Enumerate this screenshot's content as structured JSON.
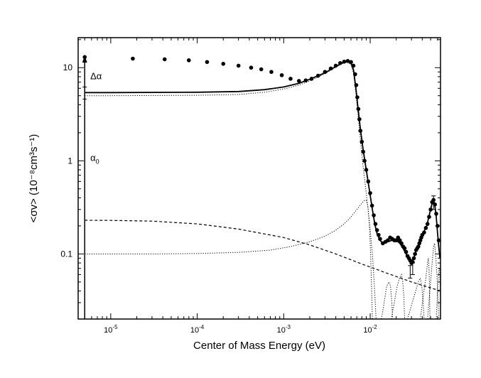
{
  "chart_data": {
    "type": "scatter",
    "xscale": "log",
    "yscale": "log",
    "xlim": [
      4.2e-06,
      0.065
    ],
    "ylim": [
      0.02,
      21
    ],
    "grid": false,
    "legend": "none",
    "xlabel": "Center of Mass Energy (eV)",
    "ylabel": "<σv> (10⁻⁸cm³s⁻¹)",
    "x_ticks": [
      {
        "value": 1e-05,
        "base": "10",
        "exp": "-5"
      },
      {
        "value": 0.0001,
        "base": "10",
        "exp": "-4"
      },
      {
        "value": 0.001,
        "base": "10",
        "exp": "-3"
      },
      {
        "value": 0.01,
        "base": "10",
        "exp": "-2"
      }
    ],
    "y_ticks": [
      {
        "value": 0.1,
        "label": "0.1"
      },
      {
        "value": 1,
        "label": "1"
      },
      {
        "value": 10,
        "label": "10"
      }
    ],
    "annotations": [
      {
        "text": "Δα",
        "x": 5.8e-06,
        "y": 7.5
      },
      {
        "text": "α",
        "sub": "0",
        "x": 5.8e-06,
        "y": 1.0
      }
    ],
    "arrow": {
      "x": 5e-06,
      "y_from": 0.02,
      "y_to": 13.5
    },
    "data_points": [
      [
        5e-06,
        13.0
      ],
      [
        1.8e-05,
        12.5
      ],
      [
        4.2e-05,
        12.3
      ],
      [
        8e-05,
        12.0
      ],
      [
        0.00013,
        11.5
      ],
      [
        0.0002,
        11.0
      ],
      [
        0.0003,
        10.5
      ],
      [
        0.00042,
        10.0
      ],
      [
        0.00055,
        9.6
      ],
      [
        0.00072,
        9.0
      ],
      [
        0.00095,
        8.3
      ],
      [
        0.0012,
        7.6
      ],
      [
        0.0015,
        7.2
      ],
      [
        0.0018,
        7.3
      ],
      [
        0.0021,
        7.6
      ],
      [
        0.0025,
        8.2
      ],
      [
        0.003,
        9.0
      ],
      [
        0.0035,
        9.8
      ],
      [
        0.004,
        10.5
      ],
      [
        0.0045,
        11.2
      ],
      [
        0.005,
        11.6
      ],
      [
        0.0055,
        11.8
      ],
      [
        0.006,
        11.5
      ],
      [
        0.0064,
        10.5
      ],
      [
        0.0067,
        8.5
      ],
      [
        0.0069,
        6.5
      ],
      [
        0.0071,
        4.8
      ],
      [
        0.0073,
        3.6
      ],
      [
        0.0075,
        2.8
      ],
      [
        0.0077,
        2.1
      ],
      [
        0.008,
        1.6
      ],
      [
        0.0083,
        1.25
      ],
      [
        0.0086,
        1.0
      ],
      [
        0.009,
        0.8
      ],
      [
        0.0095,
        0.6
      ],
      [
        0.01,
        0.45
      ],
      [
        0.0105,
        0.33
      ],
      [
        0.011,
        0.26
      ],
      [
        0.0115,
        0.21
      ],
      [
        0.012,
        0.18
      ],
      [
        0.0125,
        0.16
      ],
      [
        0.013,
        0.145
      ],
      [
        0.014,
        0.13
      ],
      [
        0.015,
        0.135
      ],
      [
        0.016,
        0.14
      ],
      [
        0.017,
        0.15
      ],
      [
        0.018,
        0.145
      ],
      [
        0.019,
        0.14
      ],
      [
        0.02,
        0.14
      ],
      [
        0.021,
        0.15
      ],
      [
        0.022,
        0.14
      ],
      [
        0.023,
        0.13
      ],
      [
        0.024,
        0.12
      ],
      [
        0.025,
        0.115
      ],
      [
        0.026,
        0.105
      ],
      [
        0.027,
        0.095
      ],
      [
        0.028,
        0.09
      ],
      [
        0.029,
        0.085
      ],
      [
        0.03,
        0.08
      ],
      [
        0.031,
        0.082
      ],
      [
        0.032,
        0.09
      ],
      [
        0.033,
        0.1
      ],
      [
        0.034,
        0.11
      ],
      [
        0.035,
        0.115
      ],
      [
        0.036,
        0.12
      ],
      [
        0.037,
        0.13
      ],
      [
        0.038,
        0.14
      ],
      [
        0.039,
        0.15
      ],
      [
        0.04,
        0.16
      ],
      [
        0.042,
        0.17
      ],
      [
        0.044,
        0.19
      ],
      [
        0.046,
        0.21
      ],
      [
        0.048,
        0.25
      ],
      [
        0.05,
        0.3
      ],
      [
        0.052,
        0.36
      ],
      [
        0.054,
        0.38
      ],
      [
        0.056,
        0.34
      ],
      [
        0.058,
        0.27
      ],
      [
        0.06,
        0.2
      ],
      [
        0.062,
        0.14
      ]
    ],
    "error_bars": [
      {
        "x": 5e-06,
        "y_low": 4.6,
        "y_high": 6.2
      },
      {
        "x": 0.029,
        "y_low": 0.055,
        "y_high": 0.075
      },
      {
        "x": 0.031,
        "y_low": 0.06,
        "y_high": 0.08
      },
      {
        "x": 0.054,
        "y_low": 0.3,
        "y_high": 0.42
      }
    ],
    "series": [
      {
        "style": "solid",
        "points": [
          [
            5e-06,
            5.4
          ],
          [
            1e-05,
            5.4
          ],
          [
            0.0001,
            5.45
          ],
          [
            0.0003,
            5.55
          ],
          [
            0.0006,
            5.8
          ],
          [
            0.001,
            6.2
          ],
          [
            0.0015,
            6.8
          ],
          [
            0.002,
            7.5
          ],
          [
            0.003,
            8.8
          ],
          [
            0.004,
            10.3
          ],
          [
            0.0048,
            11.3
          ],
          [
            0.0055,
            11.6
          ],
          [
            0.006,
            11.2
          ],
          [
            0.0064,
            9.5
          ],
          [
            0.0068,
            6.2
          ],
          [
            0.0072,
            3.8
          ],
          [
            0.0077,
            2.2
          ],
          [
            0.0083,
            1.3
          ],
          [
            0.009,
            0.8
          ],
          [
            0.0098,
            0.48
          ],
          [
            0.0106,
            0.3
          ],
          [
            0.0113,
            0.21
          ],
          [
            0.012,
            0.165
          ],
          [
            0.013,
            0.14
          ],
          [
            0.014,
            0.13
          ],
          [
            0.016,
            0.135
          ],
          [
            0.018,
            0.14
          ],
          [
            0.02,
            0.14
          ],
          [
            0.022,
            0.13
          ],
          [
            0.024,
            0.115
          ],
          [
            0.026,
            0.1
          ],
          [
            0.028,
            0.088
          ],
          [
            0.03,
            0.082
          ],
          [
            0.032,
            0.09
          ],
          [
            0.034,
            0.11
          ],
          [
            0.036,
            0.125
          ],
          [
            0.04,
            0.16
          ],
          [
            0.045,
            0.2
          ],
          [
            0.049,
            0.28
          ],
          [
            0.052,
            0.35
          ],
          [
            0.054,
            0.38
          ],
          [
            0.056,
            0.33
          ],
          [
            0.058,
            0.25
          ],
          [
            0.06,
            0.17
          ],
          [
            0.062,
            0.12
          ],
          [
            0.064,
            0.09
          ]
        ]
      },
      {
        "style": "dotted",
        "points": [
          [
            5e-06,
            5.0
          ],
          [
            1e-05,
            5.0
          ],
          [
            0.0001,
            5.05
          ],
          [
            0.0003,
            5.15
          ],
          [
            0.0006,
            5.45
          ],
          [
            0.001,
            5.9
          ],
          [
            0.0015,
            6.5
          ],
          [
            0.002,
            7.2
          ],
          [
            0.003,
            8.6
          ],
          [
            0.004,
            10.1
          ],
          [
            0.0048,
            11.1
          ],
          [
            0.0055,
            11.4
          ],
          [
            0.006,
            10.8
          ],
          [
            0.0064,
            8.8
          ],
          [
            0.0068,
            5.5
          ],
          [
            0.0072,
            3.2
          ],
          [
            0.0077,
            1.7
          ],
          [
            0.0083,
            0.85
          ],
          [
            0.009,
            0.45
          ],
          [
            0.0098,
            0.22
          ],
          [
            0.0106,
            0.1
          ],
          [
            0.0112,
            0.045
          ],
          [
            0.0117,
            0.02
          ]
        ]
      },
      {
        "style": "dashed",
        "points": [
          [
            5e-06,
            0.23
          ],
          [
            1e-05,
            0.229
          ],
          [
            3e-05,
            0.225
          ],
          [
            0.0001,
            0.21
          ],
          [
            0.0003,
            0.185
          ],
          [
            0.001,
            0.15
          ],
          [
            0.002,
            0.125
          ],
          [
            0.004,
            0.1
          ],
          [
            0.008,
            0.078
          ],
          [
            0.015,
            0.063
          ],
          [
            0.03,
            0.05
          ],
          [
            0.065,
            0.04
          ]
        ]
      },
      {
        "style": "dotted",
        "points": [
          [
            5e-06,
            0.1
          ],
          [
            3e-05,
            0.1
          ],
          [
            0.0001,
            0.101
          ],
          [
            0.0003,
            0.104
          ],
          [
            0.0007,
            0.11
          ],
          [
            0.0012,
            0.12
          ],
          [
            0.002,
            0.135
          ],
          [
            0.003,
            0.155
          ],
          [
            0.004,
            0.18
          ],
          [
            0.005,
            0.21
          ],
          [
            0.006,
            0.25
          ],
          [
            0.007,
            0.3
          ],
          [
            0.008,
            0.35
          ],
          [
            0.0087,
            0.38
          ],
          [
            0.009,
            0.375
          ],
          [
            0.0094,
            0.33
          ],
          [
            0.0098,
            0.2
          ],
          [
            0.0101,
            0.1
          ],
          [
            0.0104,
            0.04
          ],
          [
            0.0106,
            0.02
          ]
        ]
      },
      {
        "style": "dotted",
        "points": [
          [
            0.0135,
            0.02
          ],
          [
            0.0145,
            0.03
          ],
          [
            0.0155,
            0.045
          ],
          [
            0.0165,
            0.05
          ],
          [
            0.0172,
            0.045
          ],
          [
            0.0178,
            0.03
          ],
          [
            0.0182,
            0.02
          ]
        ]
      },
      {
        "style": "dotted",
        "points": [
          [
            0.0175,
            0.02
          ],
          [
            0.019,
            0.03
          ],
          [
            0.0205,
            0.045
          ],
          [
            0.0218,
            0.055
          ],
          [
            0.023,
            0.06
          ],
          [
            0.0238,
            0.05
          ],
          [
            0.0245,
            0.035
          ],
          [
            0.025,
            0.02
          ]
        ]
      },
      {
        "style": "dotted",
        "points": [
          [
            0.027,
            0.02
          ],
          [
            0.03,
            0.028
          ],
          [
            0.033,
            0.038
          ],
          [
            0.036,
            0.05
          ],
          [
            0.038,
            0.055
          ],
          [
            0.0395,
            0.045
          ],
          [
            0.041,
            0.03
          ],
          [
            0.042,
            0.02
          ]
        ]
      },
      {
        "style": "dotted",
        "points": [
          [
            0.038,
            0.02
          ],
          [
            0.041,
            0.035
          ],
          [
            0.044,
            0.055
          ],
          [
            0.046,
            0.08
          ],
          [
            0.047,
            0.09
          ],
          [
            0.0478,
            0.07
          ],
          [
            0.0485,
            0.045
          ],
          [
            0.049,
            0.02
          ]
        ]
      },
      {
        "style": "dotted",
        "points": [
          [
            0.046,
            0.02
          ],
          [
            0.049,
            0.04
          ],
          [
            0.052,
            0.08
          ],
          [
            0.054,
            0.12
          ],
          [
            0.0555,
            0.13
          ],
          [
            0.057,
            0.1
          ],
          [
            0.059,
            0.06
          ],
          [
            0.061,
            0.03
          ],
          [
            0.062,
            0.02
          ]
        ]
      },
      {
        "style": "dotted",
        "points": [
          [
            0.058,
            0.02
          ],
          [
            0.06,
            0.04
          ],
          [
            0.062,
            0.065
          ],
          [
            0.0635,
            0.07
          ],
          [
            0.0645,
            0.045
          ],
          [
            0.065,
            0.025
          ]
        ]
      }
    ]
  }
}
